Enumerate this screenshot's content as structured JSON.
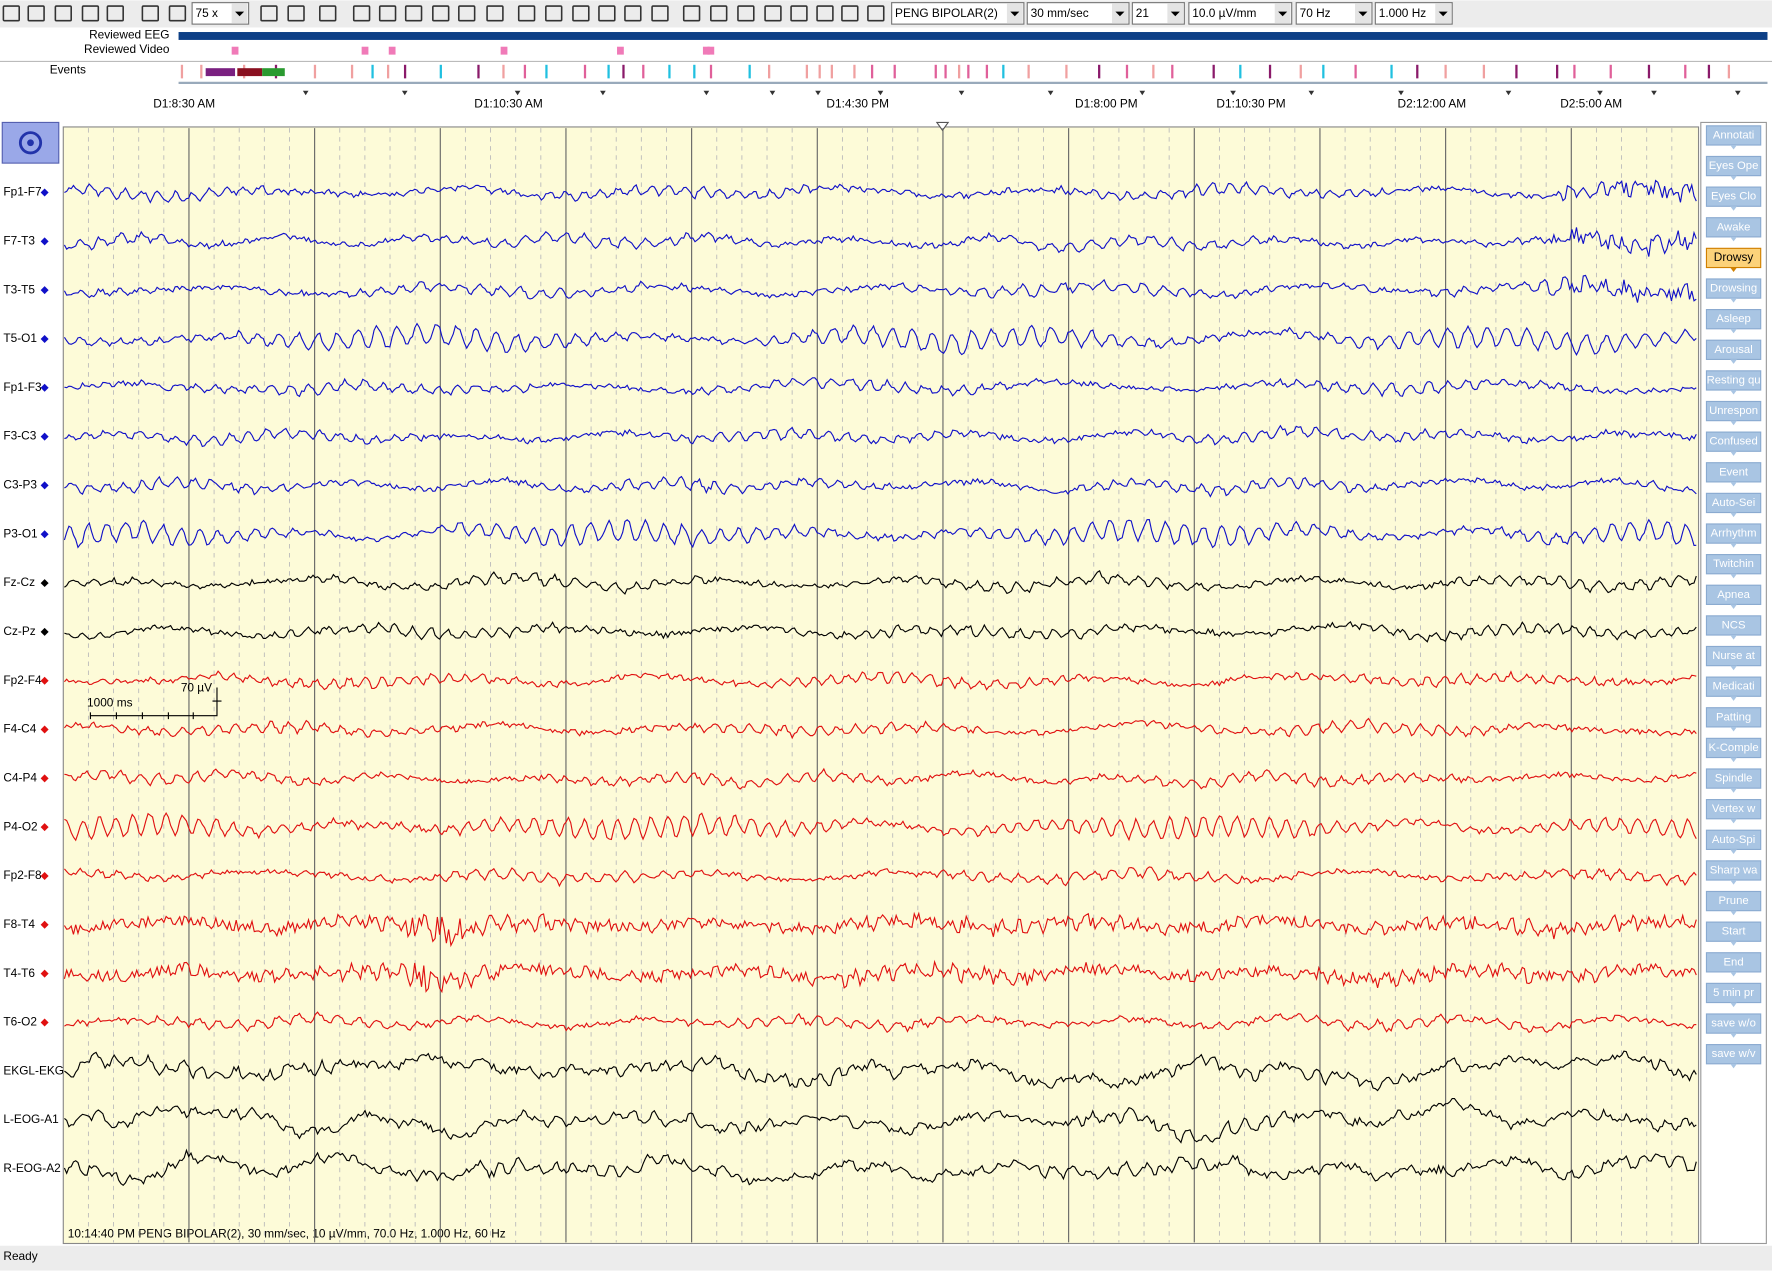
{
  "toolbar": {
    "zoom": "75 x",
    "montage": "PENG BIPOLAR(2)",
    "paper_speed": "30 mm/sec",
    "channel_count": "21",
    "sensitivity": "10.0 µV/mm",
    "high_filter": "70 Hz",
    "low_filter": "1.000 Hz"
  },
  "tracks": {
    "reviewed_eeg": "Reviewed EEG",
    "reviewed_video": "Reviewed Video",
    "events": "Events"
  },
  "timeline": [
    "D1:8:30 AM",
    "D1:10:30 AM",
    "D1:4:30 PM",
    "D1:8:00 PM",
    "D1:10:30 PM",
    "D2:12:00 AM",
    "D2:5:00 AM"
  ],
  "channels": [
    "Fp1-F7",
    "F7-T3",
    "T3-T5",
    "T5-O1",
    "Fp1-F3",
    "F3-C3",
    "C3-P3",
    "P3-O1",
    "Fz-Cz",
    "Cz-Pz",
    "Fp2-F4",
    "F4-C4",
    "C4-P4",
    "P4-O2",
    "Fp2-F8",
    "F8-T4",
    "T4-T6",
    "T6-O2",
    "EKGL-EKG",
    "L-EOG-A1",
    "R-EOG-A2"
  ],
  "scale": {
    "amplitude": "70 µV",
    "duration": "1000 ms"
  },
  "annotations": [
    "Annotati",
    "Eyes Ope",
    "Eyes Clo",
    "Awake",
    "Drowsy",
    "Drowsing",
    "Asleep",
    "Arousal",
    "Resting qu",
    "Unrespon",
    "Confused",
    "Event",
    "Auto-Sei",
    "Arrhythm",
    "Twitchin",
    "Apnea",
    "NCS",
    "Nurse at",
    "Medicati",
    "Patting",
    "K-Comple",
    "Spindle",
    "Vertex w",
    "Auto-Spi",
    "Sharp wa",
    "Prune",
    "Start",
    "End",
    "5 min pr",
    "save w/o",
    "save w/v"
  ],
  "status_line": "10:14:40 PM PENG BIPOLAR(2), 30 mm/sec, 10 µV/mm, 70.0 Hz, 1.000 Hz, 60 Hz",
  "status_bar": "Ready"
}
